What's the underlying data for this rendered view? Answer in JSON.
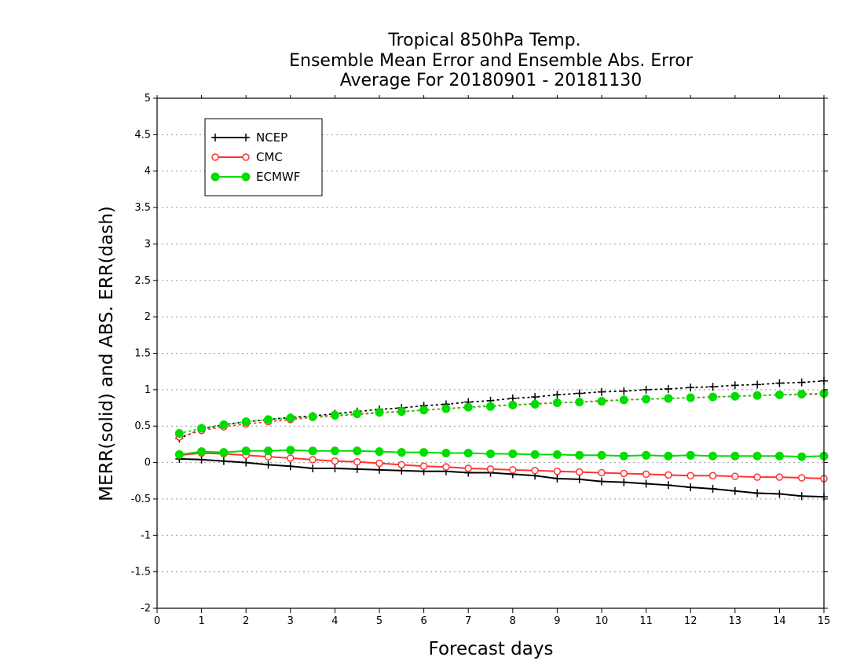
{
  "chart_data": {
    "type": "line",
    "title": [
      "Tropical 850hPa Temp.",
      "Ensemble Mean Error and Ensemble Abs. Error",
      "Average For 20180901 - 20181130"
    ],
    "xlabel": "Forecast days",
    "ylabel": "MERR(solid) and ABS. ERR(dash)",
    "xlim": [
      0,
      15
    ],
    "ylim": [
      -2,
      5
    ],
    "xticks": [
      0,
      1,
      2,
      3,
      4,
      5,
      6,
      7,
      8,
      9,
      10,
      11,
      12,
      13,
      14,
      15
    ],
    "yticks": [
      -2,
      -1.5,
      -1,
      -0.5,
      0,
      0.5,
      1,
      1.5,
      2,
      2.5,
      3,
      3.5,
      4,
      4.5,
      5
    ],
    "grid": "horizontal dotted",
    "legend_position": "top-left",
    "x": [
      0.5,
      1,
      1.5,
      2,
      2.5,
      3,
      3.5,
      4,
      4.5,
      5,
      5.5,
      6,
      6.5,
      7,
      7.5,
      8,
      8.5,
      9,
      9.5,
      10,
      10.5,
      11,
      11.5,
      12,
      12.5,
      13,
      13.5,
      14,
      14.5,
      15
    ],
    "series": [
      {
        "name": "NCEP",
        "color": "#000000",
        "marker": "plus",
        "merr": [
          0.05,
          0.04,
          0.02,
          0.0,
          -0.03,
          -0.05,
          -0.08,
          -0.08,
          -0.09,
          -0.1,
          -0.11,
          -0.12,
          -0.12,
          -0.14,
          -0.14,
          -0.16,
          -0.18,
          -0.22,
          -0.23,
          -0.26,
          -0.27,
          -0.29,
          -0.31,
          -0.34,
          -0.36,
          -0.39,
          -0.42,
          -0.43,
          -0.46,
          -0.47
        ],
        "abs_err": [
          0.33,
          0.46,
          0.52,
          0.56,
          0.59,
          0.62,
          0.64,
          0.67,
          0.7,
          0.73,
          0.75,
          0.78,
          0.8,
          0.83,
          0.85,
          0.88,
          0.9,
          0.93,
          0.95,
          0.97,
          0.98,
          1.0,
          1.01,
          1.03,
          1.04,
          1.06,
          1.07,
          1.09,
          1.1,
          1.12
        ]
      },
      {
        "name": "CMC",
        "color": "#ff3333",
        "marker": "open-circle",
        "merr": [
          0.1,
          0.13,
          0.12,
          0.1,
          0.08,
          0.06,
          0.04,
          0.02,
          0.01,
          -0.01,
          -0.03,
          -0.05,
          -0.06,
          -0.08,
          -0.09,
          -0.1,
          -0.11,
          -0.12,
          -0.13,
          -0.14,
          -0.15,
          -0.16,
          -0.17,
          -0.18,
          -0.18,
          -0.19,
          -0.2,
          -0.2,
          -0.21,
          -0.22
        ],
        "abs_err": [
          0.35,
          0.44,
          0.49,
          0.53,
          0.56,
          0.59,
          0.62,
          0.64,
          0.66,
          0.68,
          0.7,
          0.72,
          0.74,
          0.76,
          0.78,
          0.79,
          0.81,
          0.82,
          0.83,
          0.85,
          0.86,
          0.87,
          0.88,
          0.89,
          0.9,
          0.91,
          0.92,
          0.93,
          0.93,
          0.94
        ]
      },
      {
        "name": "ECMWF",
        "color": "#00dd00",
        "marker": "filled-circle",
        "merr": [
          0.11,
          0.15,
          0.14,
          0.16,
          0.16,
          0.17,
          0.16,
          0.16,
          0.16,
          0.15,
          0.14,
          0.14,
          0.13,
          0.13,
          0.12,
          0.12,
          0.11,
          0.11,
          0.1,
          0.1,
          0.09,
          0.1,
          0.09,
          0.1,
          0.09,
          0.09,
          0.09,
          0.09,
          0.08,
          0.09
        ],
        "abs_err": [
          0.4,
          0.47,
          0.52,
          0.56,
          0.59,
          0.61,
          0.63,
          0.65,
          0.67,
          0.69,
          0.7,
          0.72,
          0.74,
          0.76,
          0.77,
          0.79,
          0.8,
          0.82,
          0.83,
          0.84,
          0.86,
          0.87,
          0.88,
          0.89,
          0.9,
          0.91,
          0.92,
          0.93,
          0.94,
          0.95
        ]
      }
    ]
  }
}
